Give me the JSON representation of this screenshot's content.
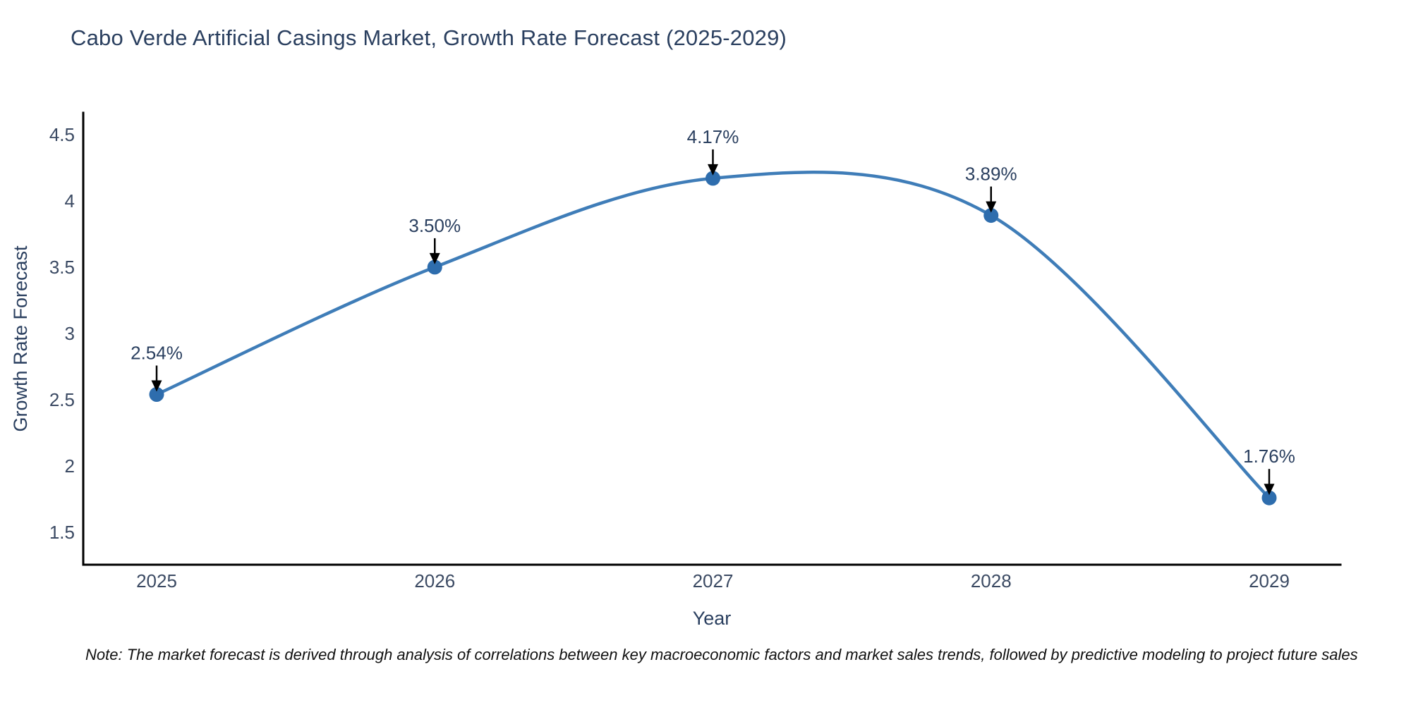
{
  "note": "Note: The market forecast is derived through analysis of correlations between key macroeconomic factors and market sales trends, followed by predictive modeling to project future sales",
  "chart_data": {
    "type": "line",
    "title": "Cabo Verde Artificial Casings Market, Growth Rate Forecast (2025-2029)",
    "x": [
      2025,
      2026,
      2027,
      2028,
      2029
    ],
    "series": [
      {
        "name": "Growth Rate Forecast",
        "values": [
          2.54,
          3.5,
          4.17,
          3.89,
          1.76
        ]
      }
    ],
    "point_labels": [
      "2.54%",
      "3.50%",
      "4.17%",
      "3.89%",
      "1.76%"
    ],
    "xlabel": "Year",
    "ylabel": "Growth Rate Forecast",
    "yticks": [
      4.5,
      4,
      3.5,
      3,
      2.5,
      2,
      1.5
    ],
    "ylim": [
      1.256,
      4.664
    ],
    "line_shape": "spline",
    "grid": false,
    "legend": "none",
    "annotation_style": "label-above-with-down-arrow",
    "colors": {
      "line": "#3f7db8",
      "marker": "#2e6dad",
      "annotation_text": "#2a3f5f",
      "annotation_arrow": "#000000",
      "title_text": "#2a3f5f",
      "axis_title_text": "#2a3f5f",
      "tick_text": "#3b4a63",
      "axis_line": "#000000",
      "background": "#ffffff"
    }
  }
}
